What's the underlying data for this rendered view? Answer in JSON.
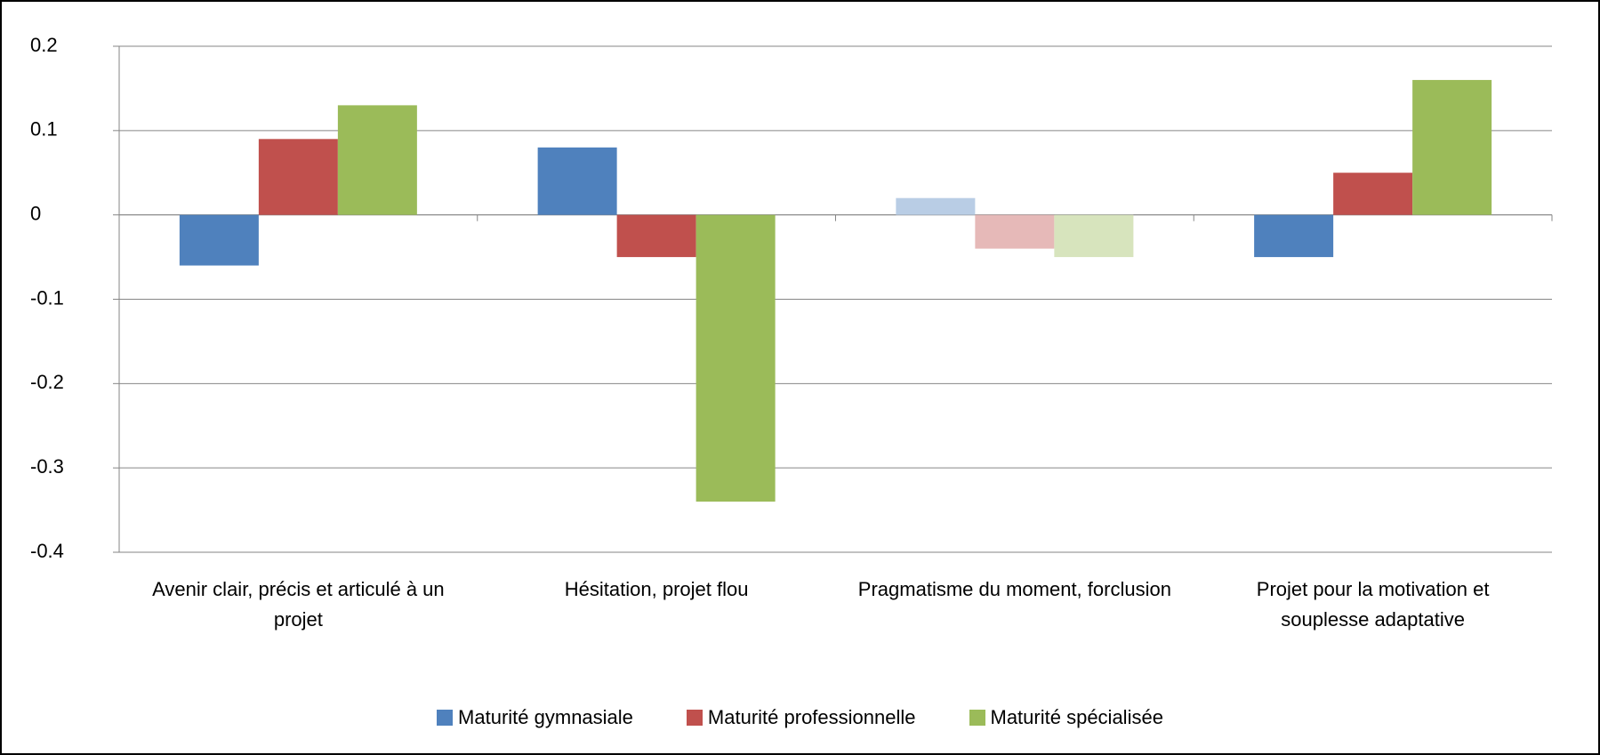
{
  "chart_data": {
    "type": "bar",
    "categories": [
      "Avenir clair, précis et articulé à un projet",
      "Hésitation, projet flou",
      "Pragmatisme du moment, forclusion",
      "Projet pour la motivation et souplesse adaptative"
    ],
    "series": [
      {
        "name": "Maturité gymnasiale",
        "color": "#4f81bd",
        "colors": [
          "#4f81bd",
          "#4f81bd",
          "#b9cde5",
          "#4f81bd"
        ],
        "values": [
          -0.06,
          0.08,
          0.02,
          -0.05
        ]
      },
      {
        "name": "Maturité professionnelle",
        "color": "#c0504d",
        "colors": [
          "#c0504d",
          "#c0504d",
          "#e6b9b8",
          "#c0504d"
        ],
        "values": [
          0.09,
          -0.05,
          -0.04,
          0.05
        ]
      },
      {
        "name": "Maturité spécialisée",
        "color": "#9bbb59",
        "colors": [
          "#9bbb59",
          "#9bbb59",
          "#d7e4bd",
          "#9bbb59"
        ],
        "values": [
          0.13,
          -0.34,
          -0.05,
          0.16
        ]
      }
    ],
    "ylim": [
      -0.4,
      0.2
    ],
    "yticks": [
      -0.4,
      -0.3,
      -0.2,
      -0.1,
      0,
      0.1,
      0.2
    ],
    "grid": true,
    "legend": "bottom"
  }
}
